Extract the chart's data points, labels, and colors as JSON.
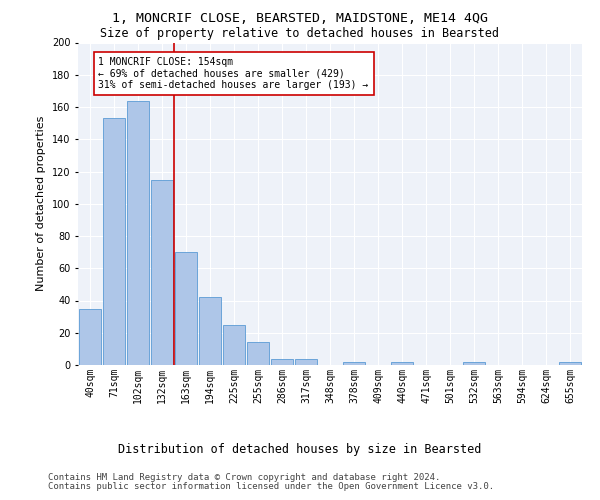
{
  "title": "1, MONCRIF CLOSE, BEARSTED, MAIDSTONE, ME14 4QG",
  "subtitle": "Size of property relative to detached houses in Bearsted",
  "xlabel_main": "Distribution of detached houses by size in Bearsted",
  "ylabel": "Number of detached properties",
  "bar_labels": [
    "40sqm",
    "71sqm",
    "102sqm",
    "132sqm",
    "163sqm",
    "194sqm",
    "225sqm",
    "255sqm",
    "286sqm",
    "317sqm",
    "348sqm",
    "378sqm",
    "409sqm",
    "440sqm",
    "471sqm",
    "501sqm",
    "532sqm",
    "563sqm",
    "594sqm",
    "624sqm",
    "655sqm"
  ],
  "bar_values": [
    35,
    153,
    164,
    115,
    70,
    42,
    25,
    14,
    4,
    4,
    0,
    2,
    0,
    2,
    0,
    0,
    2,
    0,
    0,
    0,
    2
  ],
  "bar_color": "#aec6e8",
  "bar_edge_color": "#5b9bd5",
  "vline_color": "#cc0000",
  "annotation_text": "1 MONCRIF CLOSE: 154sqm\n← 69% of detached houses are smaller (429)\n31% of semi-detached houses are larger (193) →",
  "annotation_box_color": "#ffffff",
  "annotation_box_edge_color": "#cc0000",
  "ylim": [
    0,
    200
  ],
  "yticks": [
    0,
    20,
    40,
    60,
    80,
    100,
    120,
    140,
    160,
    180,
    200
  ],
  "footer_line1": "Contains HM Land Registry data © Crown copyright and database right 2024.",
  "footer_line2": "Contains public sector information licensed under the Open Government Licence v3.0.",
  "bg_color": "#eef2f9",
  "title_fontsize": 9.5,
  "subtitle_fontsize": 8.5,
  "tick_fontsize": 7,
  "ylabel_fontsize": 8,
  "xlabel_main_fontsize": 8.5,
  "annotation_fontsize": 7,
  "footer_fontsize": 6.5
}
